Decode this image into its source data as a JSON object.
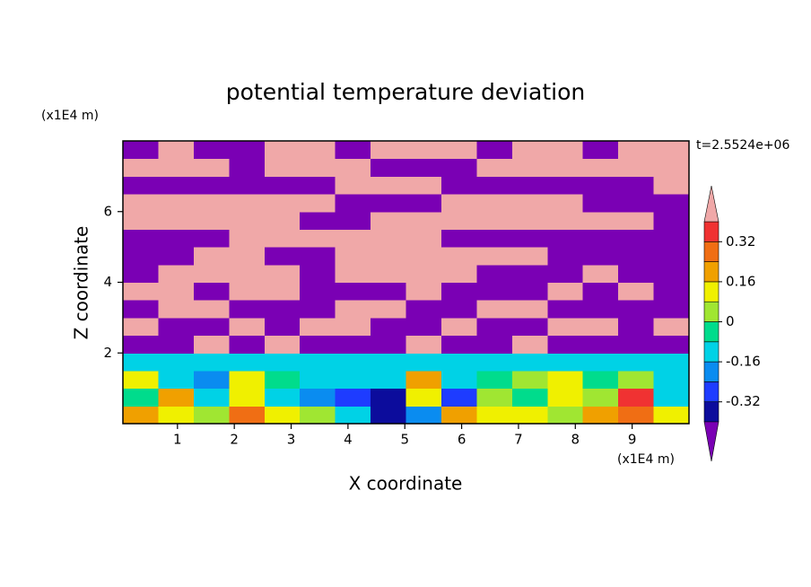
{
  "chart_data": {
    "type": "contour",
    "title": "potential temperature deviation",
    "xlabel": "X coordinate",
    "ylabel": "Z coordinate",
    "x_unit": "(x1E4 m)",
    "y_unit": "(x1E4 m)",
    "time_label": "t=2.5524e+06",
    "xlim": [
      0.04,
      10
    ],
    "ylim": [
      0,
      8
    ],
    "xticks": [
      1,
      2,
      3,
      4,
      5,
      6,
      7,
      8,
      9
    ],
    "yticks": [
      2,
      4,
      6
    ],
    "levels": [
      -0.4,
      -0.32,
      -0.24,
      -0.16,
      -0.08,
      0,
      0.08,
      0.16,
      0.24,
      0.32,
      0.4
    ],
    "colors": [
      "#7a00b4",
      "#0c0c9c",
      "#1e3cff",
      "#0a8cf0",
      "#00d2e6",
      "#00dc8c",
      "#a0e632",
      "#f0f000",
      "#f0a000",
      "#f06e14",
      "#f03232",
      "#f0a8a8"
    ],
    "colorbar_ticks": [
      0.32,
      0.16,
      0,
      -0.16,
      -0.32
    ],
    "x": [
      0.35,
      0.97,
      1.6,
      2.22,
      2.84,
      3.46,
      4.09,
      4.71,
      5.33,
      5.95,
      6.58,
      7.2,
      7.82,
      8.44,
      9.06,
      9.69
    ],
    "z": [
      0.25,
      0.75,
      1.25,
      1.75,
      2.25,
      2.75,
      3.25,
      3.75,
      4.25,
      4.75,
      5.25,
      5.75,
      6.25,
      6.75,
      7.25,
      7.75
    ],
    "field": [
      [
        0.2,
        0.1,
        0.04,
        0.3,
        0.1,
        0.06,
        -0.1,
        -0.35,
        -0.2,
        0.2,
        0.1,
        0.12,
        0.05,
        0.2,
        0.3,
        0.1
      ],
      [
        -0.05,
        0.2,
        -0.15,
        0.1,
        -0.1,
        -0.2,
        -0.25,
        -0.38,
        0.1,
        -0.3,
        0.05,
        -0.05,
        0.1,
        0.05,
        0.35,
        -0.1
      ],
      [
        0.15,
        -0.1,
        -0.2,
        0.12,
        -0.05,
        -0.1,
        -0.15,
        -0.12,
        0.2,
        -0.1,
        -0.05,
        0.05,
        0.1,
        -0.05,
        0.05,
        -0.1
      ],
      [
        -0.12,
        -0.15,
        -0.15,
        -0.1,
        -0.15,
        -0.12,
        -0.15,
        -0.15,
        -0.15,
        -0.12,
        -0.15,
        -0.15,
        -0.15,
        -0.15,
        -0.15,
        -0.1
      ],
      [
        -0.5,
        -0.5,
        0.5,
        -0.5,
        0.5,
        -0.5,
        -0.5,
        -0.5,
        0.5,
        -0.5,
        -0.5,
        0.5,
        -0.5,
        -0.5,
        -0.5,
        -0.5
      ],
      [
        0.5,
        -0.5,
        -0.5,
        0.5,
        -0.5,
        0.5,
        0.5,
        -0.5,
        -0.5,
        0.5,
        -0.5,
        -0.5,
        0.5,
        0.5,
        -0.5,
        0.5
      ],
      [
        -0.5,
        0.5,
        0.5,
        -0.5,
        -0.5,
        -0.5,
        0.5,
        0.5,
        -0.5,
        -0.5,
        0.5,
        0.5,
        -0.5,
        -0.5,
        -0.5,
        -0.5
      ],
      [
        0.5,
        0.5,
        -0.5,
        0.5,
        0.5,
        -0.5,
        -0.5,
        -0.5,
        0.5,
        -0.5,
        -0.5,
        -0.5,
        0.5,
        -0.5,
        0.5,
        -0.5
      ],
      [
        -0.5,
        0.5,
        0.5,
        0.5,
        0.5,
        -0.5,
        0.5,
        0.5,
        0.5,
        0.5,
        -0.5,
        -0.5,
        -0.5,
        0.5,
        -0.5,
        -0.5
      ],
      [
        -0.5,
        -0.5,
        0.5,
        0.5,
        -0.5,
        -0.5,
        0.5,
        0.5,
        0.5,
        0.5,
        0.5,
        0.5,
        -0.5,
        -0.5,
        -0.5,
        -0.5
      ],
      [
        -0.5,
        -0.5,
        -0.5,
        0.5,
        0.5,
        0.5,
        0.5,
        0.5,
        0.5,
        -0.5,
        -0.5,
        -0.5,
        -0.5,
        -0.5,
        -0.5,
        -0.5
      ],
      [
        0.5,
        0.5,
        0.5,
        0.5,
        0.5,
        -0.5,
        -0.5,
        0.5,
        0.5,
        0.5,
        0.5,
        0.5,
        0.5,
        0.5,
        0.5,
        -0.5
      ],
      [
        0.5,
        0.5,
        0.5,
        0.5,
        0.5,
        0.5,
        -0.5,
        -0.5,
        -0.5,
        0.5,
        0.5,
        0.5,
        0.5,
        -0.5,
        -0.5,
        -0.5
      ],
      [
        -0.5,
        -0.5,
        -0.5,
        -0.5,
        -0.5,
        -0.5,
        0.5,
        0.5,
        0.5,
        -0.5,
        -0.5,
        -0.5,
        -0.5,
        -0.5,
        -0.5,
        0.5
      ],
      [
        0.5,
        0.5,
        0.5,
        -0.5,
        0.5,
        0.5,
        0.5,
        -0.5,
        -0.5,
        -0.5,
        0.5,
        0.5,
        0.5,
        0.5,
        0.5,
        0.5
      ],
      [
        -0.5,
        0.5,
        -0.5,
        -0.5,
        0.5,
        0.5,
        -0.5,
        0.5,
        0.5,
        0.5,
        -0.5,
        0.5,
        0.5,
        -0.5,
        0.5,
        0.5
      ]
    ]
  }
}
